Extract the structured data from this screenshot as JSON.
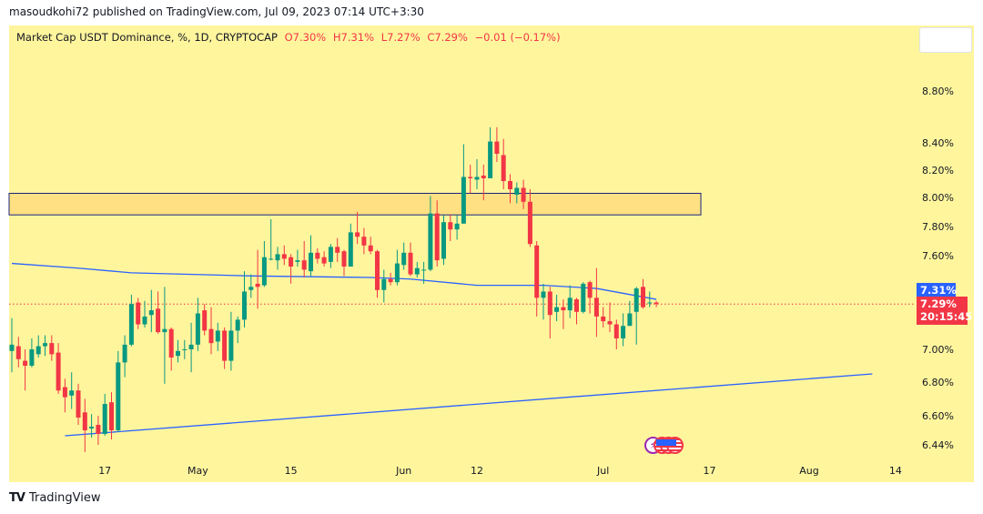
{
  "header": {
    "published": "masoudkohi72 published on TradingView.com, Jul 09, 2023 07:14 UTC+3:30"
  },
  "legend": {
    "symbol": "Market Cap USDT Dominance, %, 1D, CRYPTOCAP",
    "open": "O7.30%",
    "high": "H7.31%",
    "low": "L7.27%",
    "close": "C7.29%",
    "change": "−0.01 (−0.17%)"
  },
  "price_labels": {
    "ma_value": "7.31%",
    "last_price": "7.29%",
    "countdown": "20:15:45"
  },
  "footer": {
    "logo_text": "TradingView"
  },
  "icons": [
    "bolt-icon",
    "us-flag-icon",
    "us-flag-icon",
    "us-flag-icon"
  ],
  "colors": {
    "background": "#FFF59D",
    "up": "#089981",
    "down": "#F23645",
    "ma": "#2962FF",
    "zone": "#FFE082"
  },
  "chart_data": {
    "type": "candlestick",
    "title": "Market Cap USDT Dominance, %, 1D, CRYPTOCAP",
    "y_ticks": [
      "8.80%",
      "8.40%",
      "8.20%",
      "8.00%",
      "7.80%",
      "7.60%",
      "7.00%",
      "6.80%",
      "6.60%",
      "6.44%"
    ],
    "y_tick_values": [
      8.8,
      8.4,
      8.2,
      8.0,
      7.8,
      7.6,
      7.0,
      6.8,
      6.6,
      6.44
    ],
    "x_ticks": [
      {
        "label": "17",
        "index": 14
      },
      {
        "label": "May",
        "index": 28
      },
      {
        "label": "15",
        "index": 42
      },
      {
        "label": "Jun",
        "index": 59
      },
      {
        "label": "12",
        "index": 70
      },
      {
        "label": "Jul",
        "index": 89
      },
      {
        "label": "17",
        "index": 105
      },
      {
        "label": "Aug",
        "index": 120
      },
      {
        "label": "14",
        "index": 133
      }
    ],
    "ohlc": [
      [
        6.99,
        7.2,
        6.86,
        7.03
      ],
      [
        7.02,
        7.08,
        6.89,
        6.94
      ],
      [
        6.93,
        7.0,
        6.75,
        6.9
      ],
      [
        6.9,
        7.07,
        6.89,
        7.0
      ],
      [
        6.97,
        7.09,
        6.95,
        7.02
      ],
      [
        7.02,
        7.09,
        6.96,
        7.04
      ],
      [
        7.04,
        7.09,
        6.93,
        6.97
      ],
      [
        6.98,
        7.04,
        6.73,
        6.75
      ],
      [
        6.77,
        6.82,
        6.62,
        6.71
      ],
      [
        6.72,
        6.86,
        6.64,
        6.75
      ],
      [
        6.75,
        6.79,
        6.55,
        6.59
      ],
      [
        6.62,
        6.7,
        6.4,
        6.52
      ],
      [
        6.53,
        6.61,
        6.48,
        6.54
      ],
      [
        6.55,
        6.6,
        6.44,
        6.5
      ],
      [
        6.5,
        6.73,
        6.49,
        6.67
      ],
      [
        6.68,
        6.74,
        6.47,
        6.52
      ],
      [
        6.52,
        6.99,
        6.51,
        6.92
      ],
      [
        6.92,
        7.09,
        6.83,
        7.03
      ],
      [
        7.03,
        7.35,
        7.02,
        7.29
      ],
      [
        7.3,
        7.33,
        7.13,
        7.16
      ],
      [
        7.16,
        7.31,
        7.14,
        7.21
      ],
      [
        7.22,
        7.38,
        7.11,
        7.25
      ],
      [
        7.26,
        7.37,
        7.1,
        7.11
      ],
      [
        7.11,
        7.4,
        6.79,
        7.13
      ],
      [
        7.13,
        7.14,
        6.87,
        6.95
      ],
      [
        6.96,
        7.06,
        6.92,
        6.99
      ],
      [
        7.0,
        7.06,
        6.94,
        7.0
      ],
      [
        7.0,
        7.17,
        6.86,
        7.03
      ],
      [
        7.03,
        7.33,
        6.99,
        7.23
      ],
      [
        7.25,
        7.29,
        7.09,
        7.12
      ],
      [
        7.13,
        7.27,
        6.97,
        7.04
      ],
      [
        7.05,
        7.17,
        6.99,
        7.12
      ],
      [
        7.12,
        7.14,
        6.88,
        6.93
      ],
      [
        6.93,
        7.24,
        6.87,
        7.12
      ],
      [
        7.12,
        7.21,
        7.04,
        7.19
      ],
      [
        7.19,
        7.5,
        7.14,
        7.37
      ],
      [
        7.38,
        7.48,
        7.33,
        7.4
      ],
      [
        7.42,
        7.64,
        7.26,
        7.4
      ],
      [
        7.41,
        7.7,
        7.4,
        7.59
      ],
      [
        7.58,
        7.85,
        7.57,
        7.58
      ],
      [
        7.57,
        7.66,
        7.51,
        7.61
      ],
      [
        7.61,
        7.67,
        7.54,
        7.58
      ],
      [
        7.59,
        7.61,
        7.42,
        7.53
      ],
      [
        7.56,
        7.64,
        7.53,
        7.57
      ],
      [
        7.57,
        7.7,
        7.46,
        7.51
      ],
      [
        7.5,
        7.74,
        7.47,
        7.62
      ],
      [
        7.62,
        7.65,
        7.55,
        7.58
      ],
      [
        7.59,
        7.63,
        7.53,
        7.55
      ],
      [
        7.56,
        7.68,
        7.52,
        7.66
      ],
      [
        7.66,
        7.72,
        7.56,
        7.62
      ],
      [
        7.63,
        7.64,
        7.47,
        7.53
      ],
      [
        7.53,
        7.82,
        7.53,
        7.76
      ],
      [
        7.76,
        7.9,
        7.68,
        7.73
      ],
      [
        7.73,
        7.79,
        7.61,
        7.67
      ],
      [
        7.67,
        7.73,
        7.61,
        7.63
      ],
      [
        7.63,
        7.64,
        7.33,
        7.38
      ],
      [
        7.38,
        7.51,
        7.3,
        7.45
      ],
      [
        7.45,
        7.49,
        7.41,
        7.43
      ],
      [
        7.43,
        7.64,
        7.41,
        7.55
      ],
      [
        7.54,
        7.69,
        7.51,
        7.62
      ],
      [
        7.62,
        7.69,
        7.47,
        7.48
      ],
      [
        7.48,
        7.56,
        7.46,
        7.52
      ],
      [
        7.51,
        7.56,
        7.42,
        7.51
      ],
      [
        7.51,
        8.01,
        7.5,
        7.89
      ],
      [
        7.89,
        7.98,
        7.53,
        7.57
      ],
      [
        7.58,
        7.88,
        7.54,
        7.83
      ],
      [
        7.83,
        7.88,
        7.7,
        7.78
      ],
      [
        7.78,
        7.88,
        7.71,
        7.82
      ],
      [
        7.82,
        8.39,
        7.82,
        8.15
      ],
      [
        8.15,
        8.24,
        8.03,
        8.14
      ],
      [
        8.13,
        8.28,
        8.06,
        8.15
      ],
      [
        8.16,
        8.24,
        7.98,
        8.14
      ],
      [
        8.14,
        8.52,
        8.14,
        8.41
      ],
      [
        8.41,
        8.52,
        8.26,
        8.32
      ],
      [
        8.31,
        8.43,
        8.06,
        8.12
      ],
      [
        8.12,
        8.17,
        7.96,
        8.06
      ],
      [
        8.02,
        8.11,
        7.96,
        8.07
      ],
      [
        8.07,
        8.13,
        7.92,
        7.97
      ],
      [
        7.97,
        8.06,
        7.66,
        7.68
      ],
      [
        7.67,
        7.7,
        7.21,
        7.33
      ],
      [
        7.33,
        7.42,
        7.19,
        7.37
      ],
      [
        7.37,
        7.4,
        7.07,
        7.22
      ],
      [
        7.24,
        7.35,
        7.18,
        7.27
      ],
      [
        7.27,
        7.32,
        7.13,
        7.25
      ],
      [
        7.25,
        7.41,
        7.2,
        7.33
      ],
      [
        7.32,
        7.33,
        7.16,
        7.24
      ],
      [
        7.24,
        7.43,
        7.23,
        7.42
      ],
      [
        7.43,
        7.44,
        7.23,
        7.33
      ],
      [
        7.33,
        7.52,
        7.08,
        7.21
      ],
      [
        7.21,
        7.27,
        7.14,
        7.18
      ],
      [
        7.18,
        7.3,
        7.11,
        7.16
      ],
      [
        7.16,
        7.19,
        7.0,
        7.07
      ],
      [
        7.07,
        7.23,
        7.02,
        7.15
      ],
      [
        7.15,
        7.31,
        7.15,
        7.23
      ],
      [
        7.24,
        7.4,
        7.03,
        7.39
      ],
      [
        7.4,
        7.45,
        7.26,
        7.27
      ],
      [
        7.3,
        7.37,
        7.27,
        7.3
      ],
      [
        7.3,
        7.31,
        7.27,
        7.29
      ]
    ],
    "moving_average": [
      [
        0,
        7.55
      ],
      [
        10,
        7.52
      ],
      [
        18,
        7.49
      ],
      [
        36,
        7.47
      ],
      [
        54,
        7.46
      ],
      [
        60,
        7.45
      ],
      [
        70,
        7.41
      ],
      [
        80,
        7.41
      ],
      [
        88,
        7.39
      ],
      [
        97,
        7.32
      ]
    ],
    "trendline": {
      "from": [
        8,
        6.49
      ],
      "to": [
        129.5,
        6.85
      ]
    },
    "zone": {
      "top": 8.03,
      "bottom": 7.88,
      "end_index": 103.7
    },
    "last_price": 7.29
  }
}
